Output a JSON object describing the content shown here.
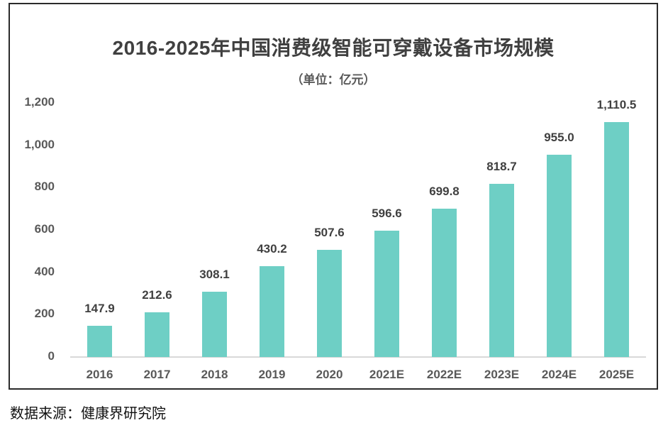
{
  "chart_data": {
    "type": "bar",
    "title": "2016-2025年中国消费级智能可穿戴设备市场规模",
    "subtitle": "（单位：亿元）",
    "categories": [
      "2016",
      "2017",
      "2018",
      "2019",
      "2020",
      "2021E",
      "2022E",
      "2023E",
      "2024E",
      "2025E"
    ],
    "values": [
      147.9,
      212.6,
      308.1,
      430.2,
      507.6,
      596.6,
      699.8,
      818.7,
      955.0,
      1110.5
    ],
    "value_labels": [
      "147.9",
      "212.6",
      "308.1",
      "430.2",
      "507.6",
      "596.6",
      "699.8",
      "818.7",
      "955.0",
      "1,110.5"
    ],
    "ylabel": "",
    "xlabel": "",
    "ylim": [
      0,
      1200
    ],
    "y_ticks": [
      {
        "label": "0",
        "value": 0
      },
      {
        "label": "200",
        "value": 200
      },
      {
        "label": "400",
        "value": 400
      },
      {
        "label": "600",
        "value": 600
      },
      {
        "label": "800",
        "value": 800
      },
      {
        "label": "1,000",
        "value": 1000
      },
      {
        "label": "1,200",
        "value": 1200
      }
    ],
    "grid": false,
    "legend_position": "none",
    "colors": {
      "bar": "#6ECFC5",
      "value_label": "#404040",
      "tick_label": "#595959",
      "axis_line": "#D9D9D9",
      "title": "#404040",
      "frame_border": "#2B2B2B"
    }
  },
  "source": {
    "text": "数据来源：健康界研究院"
  }
}
